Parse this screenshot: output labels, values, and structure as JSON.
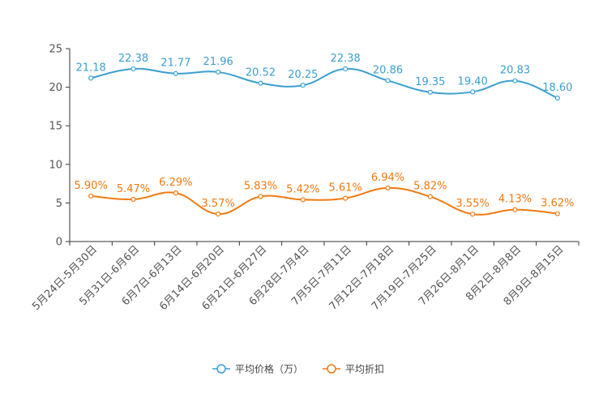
{
  "chart_data": {
    "type": "line",
    "title": "",
    "xlabel": "",
    "ylabel": "",
    "ylim": [
      0,
      25
    ],
    "yticks": [
      0,
      5,
      10,
      15,
      20,
      25
    ],
    "grid": false,
    "legend_position": "bottom-center",
    "categories": [
      "5月24日-5月30日",
      "5月31日-6月6日",
      "6月7日-6月13日",
      "6月14日-6月20日",
      "6月21日-6月27日",
      "6月28日-7月4日",
      "7月5日-7月11日",
      "7月12日-7月18日",
      "7月19日-7月25日",
      "7月26日-8月1日",
      "8月2日-8月8日",
      "8月9日-8月15日"
    ],
    "series": [
      {
        "name": "平均价格（万）",
        "color": "#3b9fd1",
        "values": [
          21.18,
          22.38,
          21.77,
          21.96,
          20.52,
          20.25,
          22.38,
          20.86,
          19.35,
          19.4,
          20.83,
          18.6
        ],
        "labels": [
          "21.18",
          "22.38",
          "21.77",
          "21.96",
          "20.52",
          "20.25",
          "22.38",
          "20.86",
          "19.35",
          "19.40",
          "20.83",
          "18.60"
        ]
      },
      {
        "name": "平均折扣",
        "color": "#f07a10",
        "values": [
          5.9,
          5.47,
          6.29,
          3.57,
          5.83,
          5.42,
          5.61,
          6.94,
          5.82,
          3.55,
          4.13,
          3.62
        ],
        "labels": [
          "5.90%",
          "5.47%",
          "6.29%",
          "3.57%",
          "5.83%",
          "5.42%",
          "5.61%",
          "6.94%",
          "5.82%",
          "3.55%",
          "4.13%",
          "3.62%"
        ]
      }
    ]
  }
}
